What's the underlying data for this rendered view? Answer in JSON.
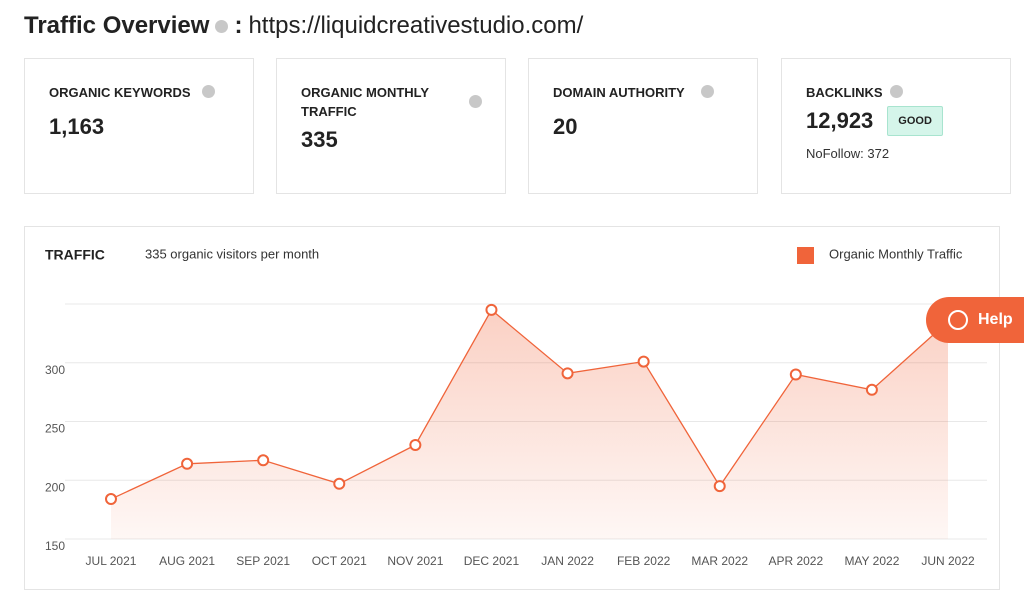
{
  "header": {
    "title": "Traffic Overview",
    "separator": ":",
    "url": "https://liquidcreativestudio.com/"
  },
  "cards": [
    {
      "label": "ORGANIC KEYWORDS",
      "value": "1,163"
    },
    {
      "label": "ORGANIC MONTHLY TRAFFIC",
      "value": "335"
    },
    {
      "label": "DOMAIN AUTHORITY",
      "value": "20"
    },
    {
      "label": "BACKLINKS",
      "value": "12,923",
      "badge": "GOOD",
      "note_label": "NoFollow:",
      "note_value": "372"
    }
  ],
  "help": {
    "label": "Help"
  },
  "chart_data": {
    "type": "line",
    "title": "TRAFFIC",
    "subtitle": "335 organic visitors per month",
    "categories": [
      "JUL 2021",
      "AUG 2021",
      "SEP 2021",
      "OCT 2021",
      "NOV 2021",
      "DEC 2021",
      "JAN 2022",
      "FEB 2022",
      "MAR 2022",
      "APR 2022",
      "MAY 2022",
      "JUN 2022"
    ],
    "series": [
      {
        "name": "Organic Monthly Traffic",
        "color": "#f0643a",
        "values": [
          184,
          214,
          217,
          197,
          230,
          345,
          291,
          301,
          195,
          290,
          277,
          335
        ]
      }
    ],
    "ylim": [
      150,
      350
    ],
    "yticks": [
      150,
      200,
      250,
      300
    ],
    "grid": true,
    "legend": "top-right"
  }
}
